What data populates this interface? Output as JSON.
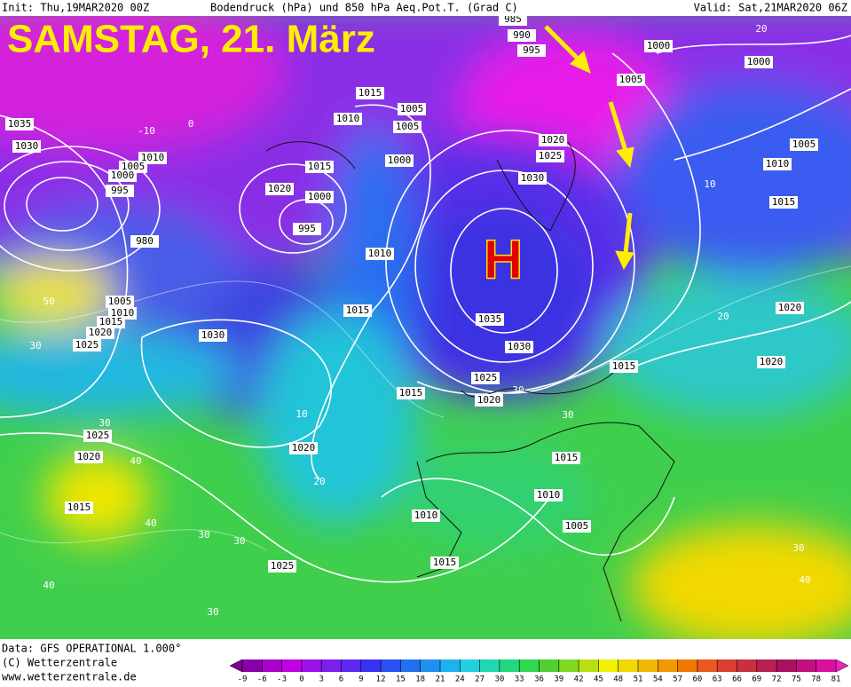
{
  "header": {
    "init": "Init: Thu,19MAR2020 00Z",
    "description": "Bodendruck (hPa) und 850 hPa Aeq.Pot.T. (Grad C)",
    "valid": "Valid: Sat,21MAR2020 06Z"
  },
  "title": "SAMSTAG, 21. März",
  "high_label": "H",
  "isobar_labels": [
    1035,
    1030,
    1010,
    1005,
    1000,
    995,
    980,
    1005,
    1010,
    1015,
    1020,
    1025,
    1030,
    1015,
    1010,
    995,
    1000,
    1020,
    1015,
    1010,
    1015,
    1005,
    1005,
    1000,
    1030,
    1025,
    1020,
    1035,
    1030,
    1025,
    1020,
    1015,
    1015,
    1020,
    1020,
    1015,
    1010,
    1005,
    1000,
    1000,
    1005,
    995,
    990,
    985,
    1025,
    1020,
    1015,
    1025,
    1020,
    1015,
    1010,
    1010,
    1005,
    1015
  ],
  "temperature_labels": [
    -10,
    0,
    50,
    30,
    40,
    30,
    40,
    30,
    30,
    30,
    20,
    10,
    20,
    30,
    40,
    40,
    30,
    30,
    10,
    20
  ],
  "footer": {
    "data": "Data: GFS OPERATIONAL 1.000°",
    "copyright": "(C) Wetterzentrale",
    "url": "www.wetterzentrale.de"
  },
  "colorbar": {
    "ticks": [
      -9,
      -6,
      -3,
      0,
      3,
      6,
      9,
      12,
      15,
      18,
      21,
      24,
      27,
      30,
      33,
      36,
      39,
      42,
      45,
      48,
      51,
      54,
      57,
      60,
      63,
      66,
      69,
      72,
      75,
      78,
      81
    ]
  }
}
